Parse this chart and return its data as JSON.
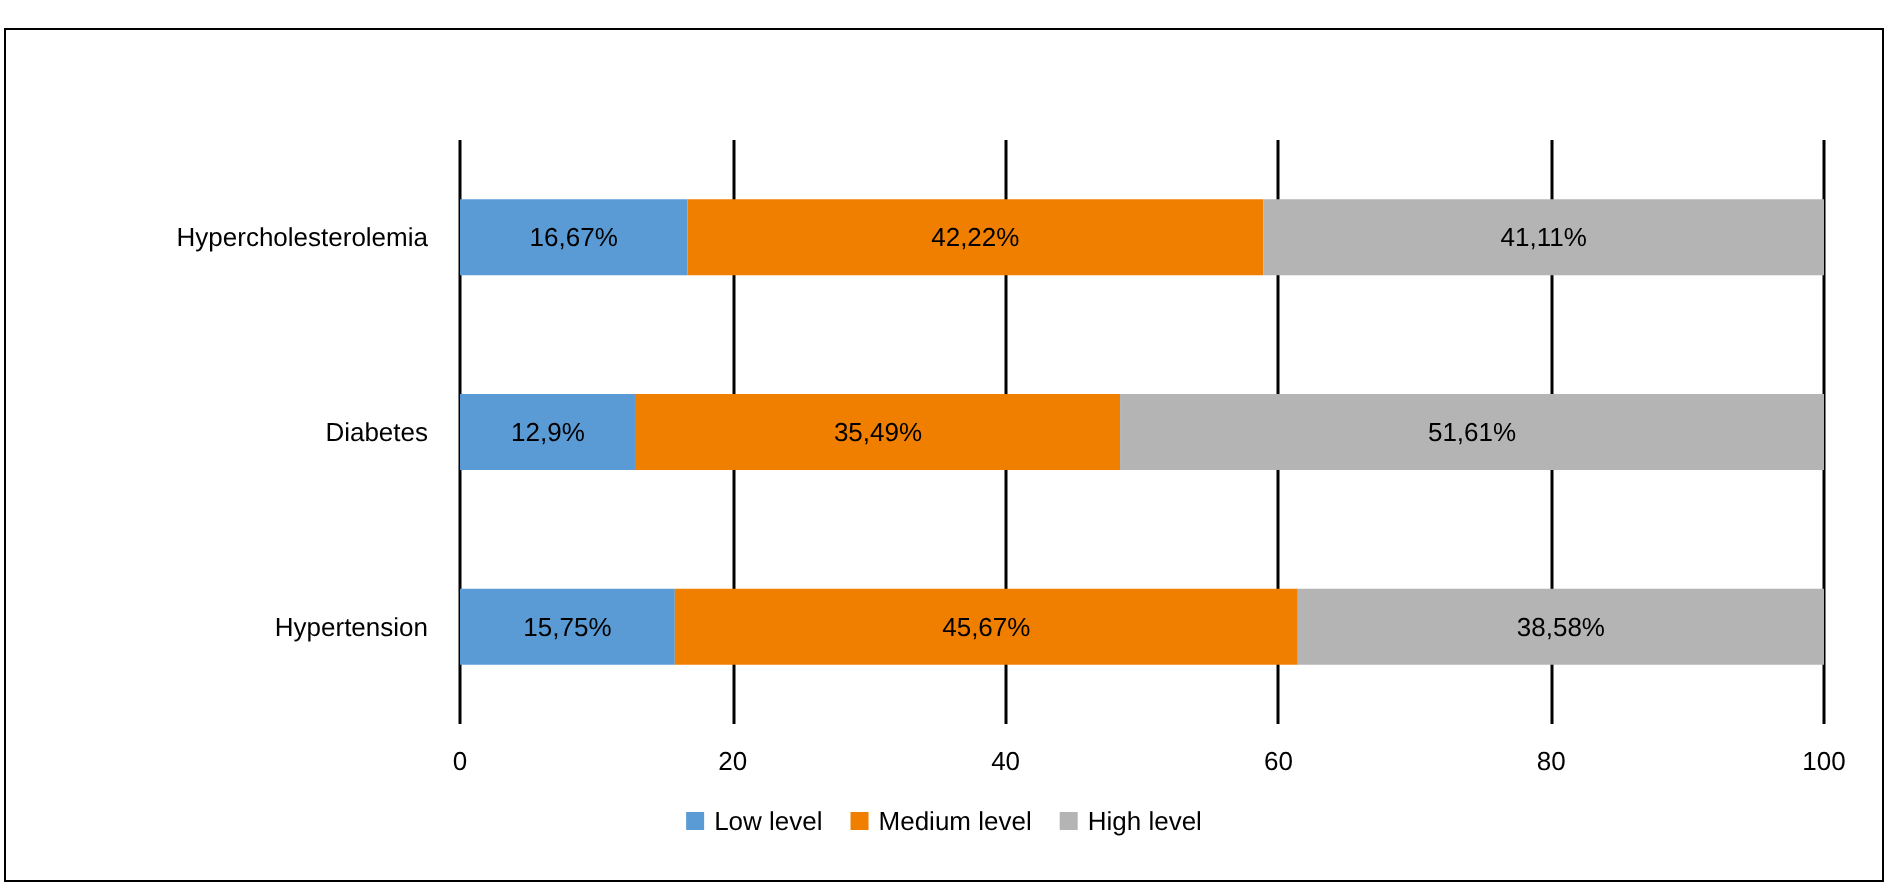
{
  "chart_data": {
    "type": "bar",
    "orientation": "horizontal",
    "stacked": true,
    "categories": [
      "Hypercholesterolemia",
      "Diabetes",
      "Hypertension"
    ],
    "series": [
      {
        "name": "Low level",
        "color": "#5b9bd5",
        "values": [
          16.67,
          12.9,
          15.75
        ],
        "value_labels": [
          "16,67%",
          "12,9%",
          "15,75%"
        ]
      },
      {
        "name": "Medium level",
        "color": "#f07f00",
        "values": [
          42.22,
          35.49,
          45.67
        ],
        "value_labels": [
          "42,22%",
          "35,49%",
          "45,67%"
        ]
      },
      {
        "name": "High level",
        "color": "#b4b4b4",
        "values": [
          41.11,
          51.61,
          38.58
        ],
        "value_labels": [
          "41,11%",
          "51,61%",
          "38,58%"
        ]
      }
    ],
    "xlim": [
      0,
      100
    ],
    "xticks": [
      0,
      20,
      40,
      60,
      80,
      100
    ],
    "grid": "x",
    "legend": "bottom"
  }
}
